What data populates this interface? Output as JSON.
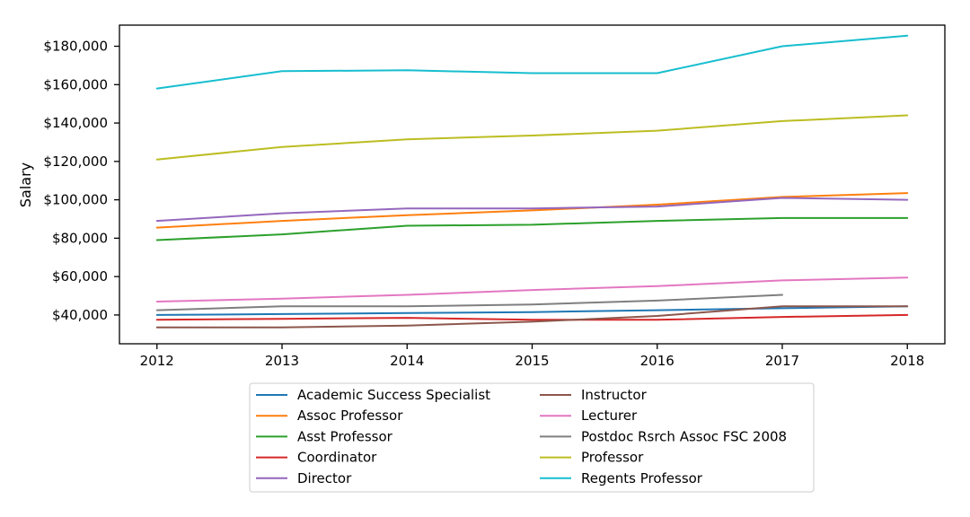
{
  "chart_data": {
    "type": "line",
    "title": "",
    "xlabel": "",
    "ylabel": "Salary",
    "x": [
      2012,
      2013,
      2014,
      2015,
      2016,
      2017,
      2018
    ],
    "x_tick_labels": [
      "2012",
      "2013",
      "2014",
      "2015",
      "2016",
      "2017",
      "2018"
    ],
    "xlim": [
      2011.7,
      2018.3
    ],
    "ylim": [
      25000,
      191000
    ],
    "y_ticks": [
      40000,
      60000,
      80000,
      100000,
      120000,
      140000,
      160000,
      180000
    ],
    "y_tick_labels": [
      "$40,000",
      "$60,000",
      "$80,000",
      "$100,000",
      "$120,000",
      "$140,000",
      "$160,000",
      "$180,000"
    ],
    "grid": false,
    "legend_position": "below",
    "series": [
      {
        "name": "Academic Success Specialist",
        "color": "#1f77b4",
        "values": [
          40000,
          40500,
          41000,
          41500,
          42500,
          43500,
          44500
        ]
      },
      {
        "name": "Assoc Professor",
        "color": "#ff7f0e",
        "values": [
          85500,
          89000,
          92000,
          94500,
          97500,
          101500,
          103500
        ]
      },
      {
        "name": "Asst Professor",
        "color": "#2ca02c",
        "values": [
          79000,
          82000,
          86500,
          87000,
          89000,
          90500,
          90500
        ]
      },
      {
        "name": "Coordinator",
        "color": "#d62728",
        "values": [
          37500,
          38000,
          38500,
          37500,
          37500,
          39000,
          40000
        ]
      },
      {
        "name": "Director",
        "color": "#9467bd",
        "values": [
          89000,
          93000,
          95500,
          95500,
          96500,
          101000,
          100000
        ]
      },
      {
        "name": "Instructor",
        "color": "#8c564b",
        "values": [
          33500,
          33500,
          34500,
          36500,
          39500,
          44500,
          44500
        ]
      },
      {
        "name": "Lecturer",
        "color": "#e377c2",
        "values": [
          47000,
          48500,
          50500,
          53000,
          55000,
          58000,
          59500
        ]
      },
      {
        "name": "Postdoc Rsrch Assoc FSC 2008",
        "color": "#7f7f7f",
        "values": [
          42500,
          44500,
          44500,
          45500,
          47500,
          50500,
          null
        ]
      },
      {
        "name": "Professor",
        "color": "#bcbd22",
        "values": [
          121000,
          127500,
          131500,
          133500,
          136000,
          141000,
          144000
        ]
      },
      {
        "name": "Regents Professor",
        "color": "#17becf",
        "values": [
          158000,
          167000,
          167500,
          166000,
          166000,
          180000,
          185500
        ]
      }
    ]
  }
}
